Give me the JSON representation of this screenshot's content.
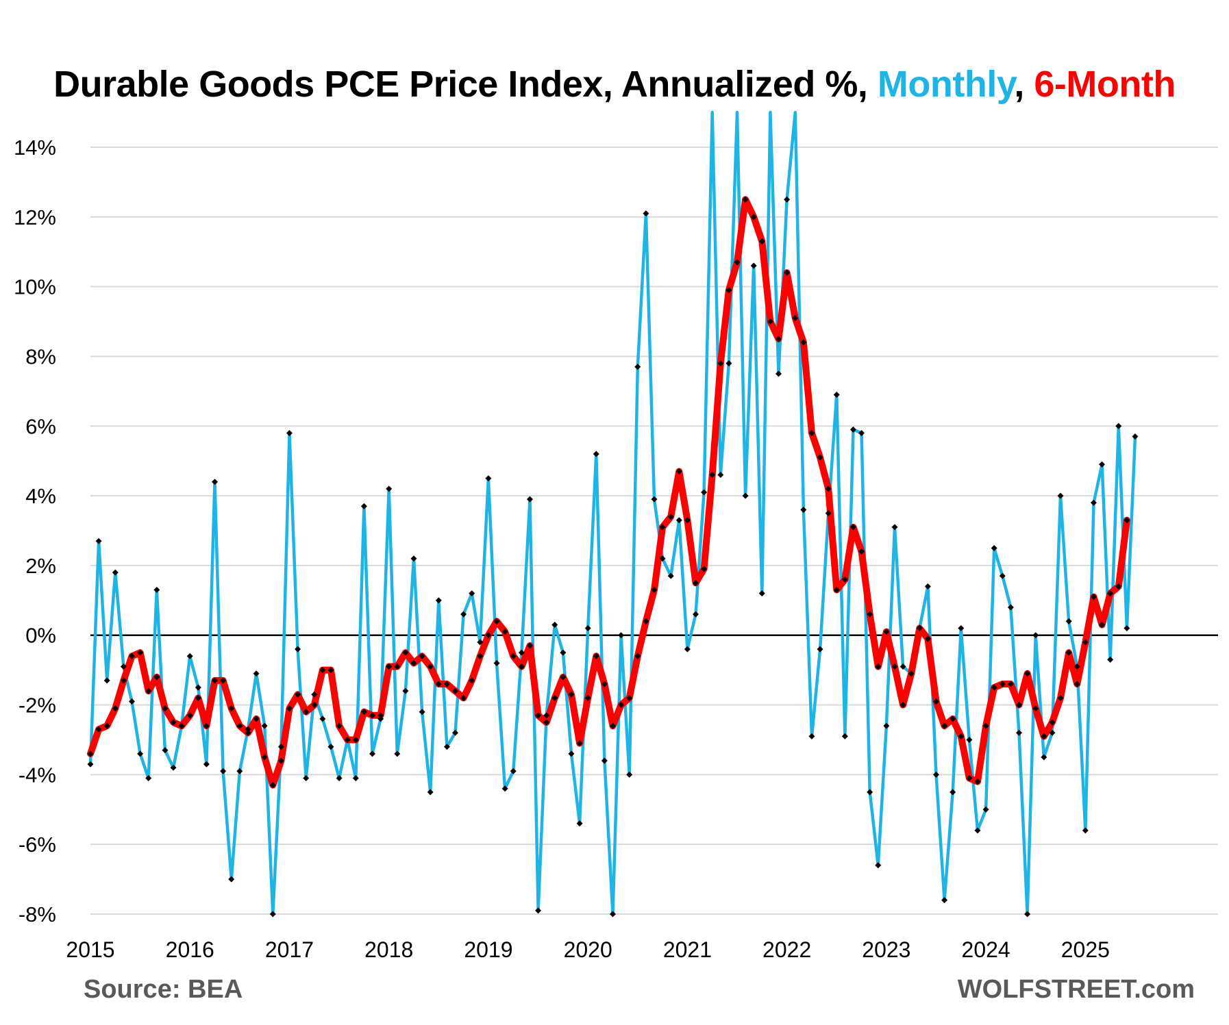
{
  "colors": {
    "monthly": "#1eb4e6",
    "six_month": "#ff0000",
    "marker": "#000000",
    "grid": "#d9d9d9"
  },
  "chart_data": {
    "type": "line",
    "title_parts": [
      "Durable Goods PCE Price Index, Annualized %, ",
      "Monthly",
      ", ",
      "6-Month"
    ],
    "xlabel": "",
    "ylabel": "",
    "ylim": [
      -8,
      14
    ],
    "y_ticks": [
      "14%",
      "12%",
      "10%",
      "8%",
      "6%",
      "4%",
      "2%",
      "0%",
      "-2%",
      "-4%",
      "-6%",
      "-8%"
    ],
    "x_ticks": [
      "2015",
      "2016",
      "2017",
      "2018",
      "2019",
      "2020",
      "2021",
      "2022",
      "2023",
      "2024",
      "2025"
    ],
    "grid": "horizontal",
    "x_start": "2015-01",
    "series": [
      {
        "name": "Monthly",
        "values": [
          -3.7,
          2.7,
          -1.3,
          1.8,
          -0.9,
          -1.9,
          -3.4,
          -4.1,
          1.3,
          -3.3,
          -3.8,
          -2.6,
          -0.6,
          -1.5,
          -3.7,
          4.4,
          -3.9,
          -7.0,
          -3.9,
          -2.7,
          -1.1,
          -2.6,
          -8.0,
          -3.2,
          5.8,
          -0.4,
          -4.1,
          -1.7,
          -2.4,
          -3.2,
          -4.1,
          -3.0,
          -4.1,
          3.7,
          -3.4,
          -2.4,
          4.2,
          -3.4,
          -1.6,
          2.2,
          -2.2,
          -4.5,
          1.0,
          -3.2,
          -2.8,
          0.6,
          1.2,
          -0.2,
          4.5,
          -0.8,
          -4.4,
          -3.9,
          -0.5,
          3.9,
          -7.9,
          -2.3,
          0.3,
          -0.5,
          -3.4,
          -5.4,
          0.2,
          5.2,
          -3.6,
          -8.0,
          0.0,
          -4.0,
          7.7,
          12.1,
          3.9,
          2.2,
          1.7,
          3.3,
          -0.4,
          0.6,
          4.1,
          15.0,
          4.6,
          7.8,
          15.0,
          4.0,
          10.6,
          1.2,
          15.0,
          7.5,
          12.5,
          15.0,
          3.6,
          -2.9,
          -0.4,
          3.5,
          6.9,
          -2.9,
          5.9,
          5.8,
          -4.5,
          -6.6,
          -2.6,
          3.1,
          -0.9,
          -1.1,
          0.2,
          1.4,
          -4.0,
          -7.6,
          -4.5,
          0.2,
          -3.0,
          -5.6,
          -5.0,
          2.5,
          1.7,
          0.8,
          -2.8,
          -8.0,
          0.0,
          -3.5,
          -2.8,
          4.0,
          0.4,
          -0.9,
          -5.6,
          3.8,
          4.9,
          -0.7,
          6.0,
          0.2,
          5.7
        ]
      },
      {
        "name": "6-Month",
        "values": [
          -3.4,
          -2.7,
          -2.6,
          -2.1,
          -1.3,
          -0.6,
          -0.5,
          -1.6,
          -1.2,
          -2.1,
          -2.5,
          -2.6,
          -2.3,
          -1.8,
          -2.6,
          -1.3,
          -1.3,
          -2.1,
          -2.6,
          -2.8,
          -2.4,
          -3.5,
          -4.3,
          -3.6,
          -2.1,
          -1.7,
          -2.2,
          -2.0,
          -1.0,
          -1.0,
          -2.6,
          -3.0,
          -3.0,
          -2.2,
          -2.3,
          -2.3,
          -0.9,
          -0.9,
          -0.5,
          -0.8,
          -0.6,
          -0.9,
          -1.4,
          -1.4,
          -1.6,
          -1.8,
          -1.3,
          -0.6,
          0.0,
          0.4,
          0.1,
          -0.6,
          -0.9,
          -0.3,
          -2.3,
          -2.5,
          -1.8,
          -1.2,
          -1.7,
          -3.1,
          -1.8,
          -0.6,
          -1.4,
          -2.6,
          -2.0,
          -1.8,
          -0.6,
          0.4,
          1.3,
          3.1,
          3.4,
          4.7,
          3.3,
          1.5,
          1.9,
          4.6,
          7.8,
          9.9,
          10.7,
          12.5,
          12.0,
          11.3,
          9.0,
          8.5,
          10.4,
          9.1,
          8.4,
          5.8,
          5.1,
          4.2,
          1.3,
          1.6,
          3.1,
          2.4,
          0.6,
          -0.9,
          0.1,
          -0.9,
          -2.0,
          -1.1,
          0.2,
          -0.1,
          -1.9,
          -2.6,
          -2.4,
          -2.9,
          -4.1,
          -4.2,
          -2.6,
          -1.5,
          -1.4,
          -1.4,
          -2.0,
          -1.1,
          -2.1,
          -2.9,
          -2.5,
          -1.8,
          -0.5,
          -1.4,
          -0.2,
          1.1,
          0.3,
          1.2,
          1.4,
          3.3
        ]
      }
    ],
    "source": "Source: BEA",
    "brand": "WOLFSTREET.com"
  }
}
